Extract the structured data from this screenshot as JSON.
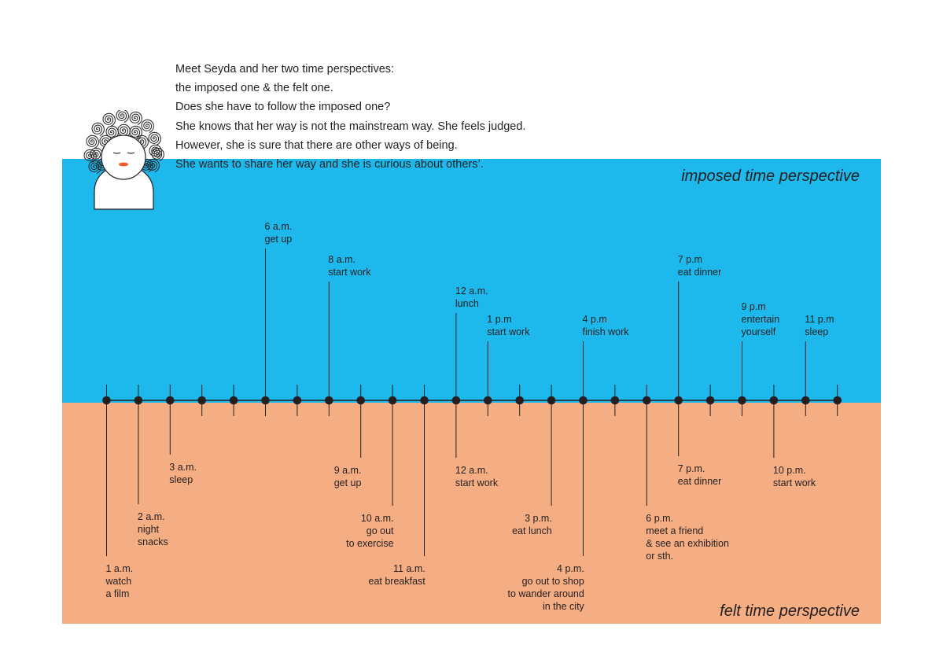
{
  "intro": {
    "lines": [
      "Meet Seyda and her two time perspectives:",
      "the imposed one & the felt one.",
      "Does she have to follow the imposed one?",
      "She knows that her way is not the mainstream way. She feels judged.",
      "However, she is sure that there are other ways of being.",
      "She wants to share her way and she is curious about others’."
    ]
  },
  "imposed": {
    "title": "imposed time perspective",
    "color": "#1db9ec",
    "events": [
      {
        "slot": 5,
        "time": "6 a.m.",
        "activity": [
          "get up"
        ]
      },
      {
        "slot": 7,
        "time": "8 a.m.",
        "activity": [
          "start work"
        ]
      },
      {
        "slot": 11,
        "time": "12 a.m.",
        "activity": [
          "lunch"
        ]
      },
      {
        "slot": 12,
        "time": "1 p.m",
        "activity": [
          "start work"
        ]
      },
      {
        "slot": 15,
        "time": "4 p.m",
        "activity": [
          "finish work"
        ]
      },
      {
        "slot": 18,
        "time": "7 p.m",
        "activity": [
          "eat dinner"
        ]
      },
      {
        "slot": 20,
        "time": "9 p.m",
        "activity": [
          "entertain",
          "yourself"
        ]
      },
      {
        "slot": 22,
        "time": "11 p.m",
        "activity": [
          "sleep"
        ]
      }
    ]
  },
  "felt": {
    "title": "felt time perspective",
    "color": "#f5ad83",
    "events": [
      {
        "slot": 0,
        "time": "1 a.m.",
        "activity": [
          "watch",
          "a film"
        ]
      },
      {
        "slot": 1,
        "time": "2 a.m.",
        "activity": [
          "night",
          "snacks"
        ]
      },
      {
        "slot": 2,
        "time": "3 a.m.",
        "activity": [
          "sleep"
        ]
      },
      {
        "slot": 8,
        "time": "9 a.m.",
        "activity": [
          "get up"
        ]
      },
      {
        "slot": 9,
        "time": "10 a.m.",
        "activity": [
          "go out",
          "to exercise"
        ]
      },
      {
        "slot": 10,
        "time": "11 a.m.",
        "activity": [
          "eat breakfast"
        ]
      },
      {
        "slot": 11,
        "time": "12 a.m.",
        "activity": [
          "start work"
        ]
      },
      {
        "slot": 14,
        "time": "3 p.m.",
        "activity": [
          "eat lunch"
        ]
      },
      {
        "slot": 15,
        "time": "4 p.m.",
        "activity": [
          "go out to shop",
          "to wander around",
          "in the city"
        ]
      },
      {
        "slot": 17,
        "time": "6 p.m.",
        "activity": [
          "meet a friend",
          "& see an exhibition",
          "or sth."
        ]
      },
      {
        "slot": 18,
        "time": "7 p.m.",
        "activity": [
          "eat dinner"
        ]
      },
      {
        "slot": 21,
        "time": "10 p.m.",
        "activity": [
          "start work"
        ]
      }
    ]
  },
  "timeline": {
    "hour_slots": 24,
    "colors": {
      "line": "#231f20",
      "skin": "#ffffff",
      "lips": "#f15a24"
    }
  }
}
